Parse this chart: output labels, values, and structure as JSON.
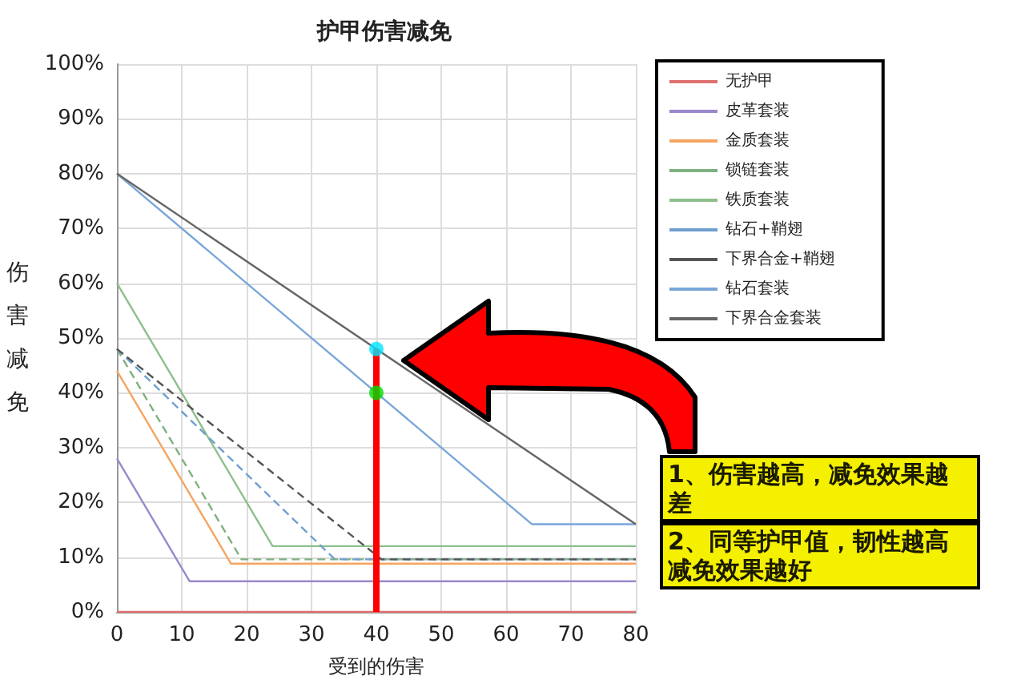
{
  "chart_data": {
    "type": "line",
    "title": "护甲伤害减免",
    "xlabel": "受到的伤害",
    "ylabel": "伤害减免",
    "xlim": [
      0,
      80
    ],
    "xticks": [
      0,
      10,
      20,
      30,
      40,
      50,
      60,
      70,
      80
    ],
    "ylim": [
      0,
      100
    ],
    "yticks": [
      {
        "value": 0,
        "label": "0%"
      },
      {
        "value": 10,
        "label": "10%"
      },
      {
        "value": 20,
        "label": "20%"
      },
      {
        "value": 30,
        "label": "30%"
      },
      {
        "value": 40,
        "label": "40%"
      },
      {
        "value": 50,
        "label": "50%"
      },
      {
        "value": 60,
        "label": "60%"
      },
      {
        "value": 70,
        "label": "70%"
      },
      {
        "value": 80,
        "label": "80%"
      },
      {
        "value": 90,
        "label": "90%"
      },
      {
        "value": 100,
        "label": "100%"
      }
    ],
    "grid": true,
    "legend": "right",
    "marker": "none",
    "series": [
      {
        "name": "无护甲",
        "color": "#e07070",
        "line_style": "solid",
        "x": [
          0,
          80
        ],
        "values": [
          0,
          0
        ]
      },
      {
        "name": "皮革套装",
        "color": "#9b88cc",
        "line_style": "solid",
        "x": [
          0,
          11.2,
          80
        ],
        "values": [
          28,
          5.6,
          5.6
        ]
      },
      {
        "name": "金质套装",
        "color": "#f5a561",
        "line_style": "solid",
        "x": [
          0,
          17.6,
          80
        ],
        "values": [
          44,
          8.8,
          8.8
        ]
      },
      {
        "name": "锁链套装",
        "color": "#7fb07f",
        "line_style": "dashed",
        "x": [
          0,
          19.2,
          80
        ],
        "values": [
          48,
          9.6,
          9.6
        ]
      },
      {
        "name": "铁质套装",
        "color": "#8cbf8c",
        "line_style": "solid",
        "x": [
          0,
          24,
          80
        ],
        "values": [
          60,
          12,
          12
        ]
      },
      {
        "name": "钻石+鞘翅",
        "color": "#6f9fd0",
        "line_style": "dashed",
        "x": [
          0,
          33.6,
          80
        ],
        "values": [
          48,
          9.6,
          9.6
        ]
      },
      {
        "name": "下界合金+鞘翅",
        "color": "#555555",
        "line_style": "dashed",
        "x": [
          0,
          40.8,
          80
        ],
        "values": [
          48,
          9.6,
          9.6
        ]
      },
      {
        "name": "钻石套装",
        "color": "#7aa6d8",
        "line_style": "solid",
        "x": [
          0,
          64,
          80
        ],
        "values": [
          80,
          16,
          16
        ]
      },
      {
        "name": "下界合金套装",
        "color": "#666666",
        "line_style": "solid",
        "x": [
          0,
          80
        ],
        "values": [
          80,
          16
        ]
      },
      {
        "color": "#ff0000",
        "line_style": "solid",
        "x": [
          40,
          40
        ],
        "values": [
          0,
          48
        ]
      },
      {
        "type": "scatter",
        "marker": "circle",
        "colors": [
          "#00e5ff",
          "#00dd00"
        ],
        "x": [
          40,
          40
        ],
        "values": [
          48,
          40
        ]
      }
    ],
    "annotations": [
      "1、伤害越高，减免效果越差",
      "2、同等护甲值，韧性越高减免效果越好"
    ]
  }
}
